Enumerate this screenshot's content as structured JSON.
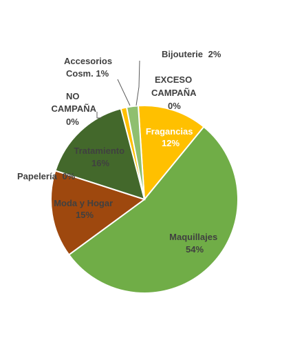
{
  "chart_data": {
    "type": "pie",
    "title": "",
    "slices": [
      {
        "label": "Fragancias",
        "value": 12,
        "value_text": "12%",
        "color": "#FFC000"
      },
      {
        "label": "Maquillajes",
        "value": 54,
        "value_text": "54%",
        "color": "#70AD47"
      },
      {
        "label": "Moda y Hogar",
        "value": 15,
        "value_text": "15%",
        "color": "#9E480E"
      },
      {
        "label": "Papelería",
        "value": 0,
        "value_text": "0%",
        "color": "#9E480E"
      },
      {
        "label": "Tratamiento",
        "value": 16,
        "value_text": "16%",
        "color": "#43682B"
      },
      {
        "label": "NO CAMPAÑA",
        "value": 0,
        "value_text": "0%",
        "color": "#43682B"
      },
      {
        "label": "Accesorios Cosm.",
        "value": 1,
        "value_text": "1%",
        "color": "#FFC000"
      },
      {
        "label": "Bijouterie",
        "value": 2,
        "value_text": "2%",
        "color": "#8FBF6F"
      },
      {
        "label": "EXCESO CAMPAÑA",
        "value": 0,
        "value_text": "0%",
        "color": "#A9D18E"
      }
    ]
  }
}
